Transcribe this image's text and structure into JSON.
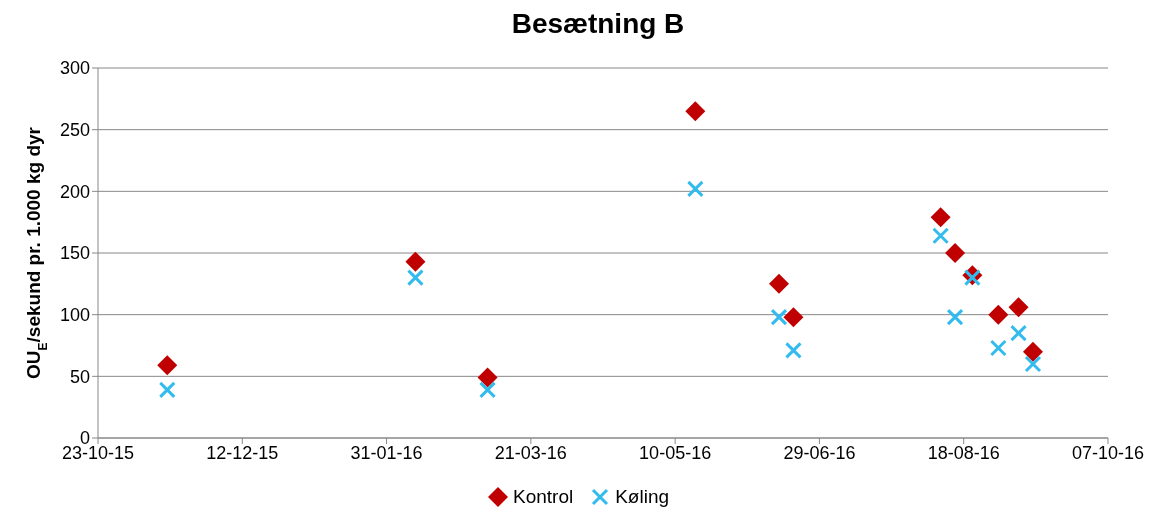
{
  "chart_data": {
    "type": "scatter",
    "title": "Besætning B",
    "ylabel": "OU$_{E}$/sekund pr. 1.000 kg dyr",
    "x": [
      "2015-11-16",
      "2016-02-10",
      "2016-03-06",
      "2016-05-17",
      "2016-06-15",
      "2016-06-20",
      "2016-08-10",
      "2016-08-15",
      "2016-08-21",
      "2016-08-30",
      "2016-09-06",
      "2016-09-11"
    ],
    "series": [
      {
        "name": "Kontrol",
        "color": "#c00000",
        "marker": "diamond",
        "values": [
          59,
          143,
          49,
          265,
          125,
          98,
          179,
          150,
          132,
          100,
          106,
          70
        ]
      },
      {
        "name": "Køling",
        "color": "#33bbee",
        "marker": "cross",
        "values": [
          39,
          130,
          39,
          202,
          98,
          71,
          164,
          98,
          130,
          73,
          85,
          60
        ]
      }
    ],
    "xlim": [
      "2015-10-23",
      "2016-10-07"
    ],
    "xticks": [
      {
        "value": "2015-10-23",
        "label": "23-10-15"
      },
      {
        "value": "2015-12-12",
        "label": "12-12-15"
      },
      {
        "value": "2016-01-31",
        "label": "31-01-16"
      },
      {
        "value": "2016-03-21",
        "label": "21-03-16"
      },
      {
        "value": "2016-05-10",
        "label": "10-05-16"
      },
      {
        "value": "2016-06-29",
        "label": "29-06-16"
      },
      {
        "value": "2016-08-18",
        "label": "18-08-16"
      },
      {
        "value": "2016-10-07",
        "label": "07-10-16"
      }
    ],
    "ylim": [
      0,
      300
    ],
    "yticks": [
      0,
      50,
      100,
      150,
      200,
      250,
      300
    ],
    "grid": "y",
    "legend": "bottom"
  }
}
